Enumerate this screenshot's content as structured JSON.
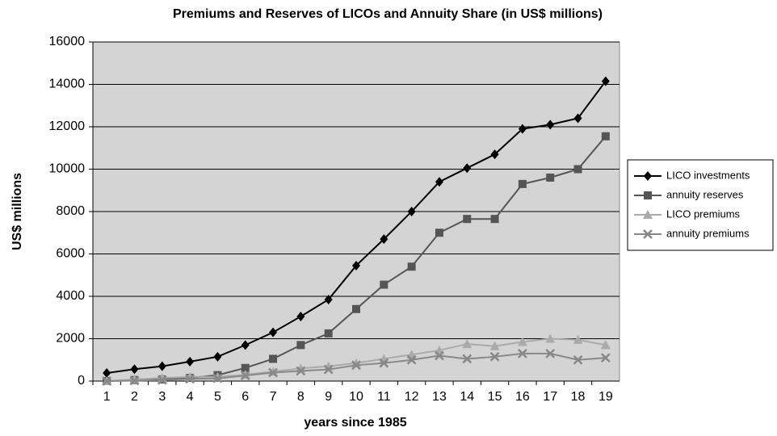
{
  "chart_data": {
    "type": "line",
    "title": "Premiums and Reserves of LICOs and Annuity Share (in US$ millions)",
    "x_label": "years since 1985",
    "y_label": "US$ millions",
    "categories": [
      "1",
      "2",
      "3",
      "4",
      "5",
      "6",
      "7",
      "8",
      "9",
      "10",
      "11",
      "12",
      "13",
      "14",
      "15",
      "16",
      "17",
      "18",
      "19"
    ],
    "series": [
      {
        "name": "LICO investments",
        "color": "#000000",
        "marker": "diamond",
        "values": [
          380,
          560,
          700,
          920,
          1150,
          1700,
          2300,
          3050,
          3850,
          5450,
          6700,
          8000,
          9400,
          10050,
          10700,
          11900,
          12100,
          12400,
          14150
        ]
      },
      {
        "name": "annuity reserves",
        "color": "#555555",
        "marker": "square",
        "values": [
          0,
          50,
          80,
          150,
          280,
          620,
          1050,
          1700,
          2250,
          3400,
          4550,
          5400,
          7000,
          7650,
          7650,
          9300,
          9600,
          10000,
          11550
        ]
      },
      {
        "name": "LICO premiums",
        "color": "#aaaaaa",
        "marker": "triangle",
        "values": [
          0,
          80,
          150,
          200,
          200,
          300,
          450,
          600,
          700,
          850,
          1050,
          1250,
          1450,
          1750,
          1650,
          1850,
          2000,
          1950,
          1700
        ]
      },
      {
        "name": "annuity premiums",
        "color": "#888888",
        "marker": "x",
        "values": [
          0,
          20,
          50,
          100,
          130,
          260,
          400,
          480,
          550,
          750,
          850,
          1000,
          1200,
          1050,
          1150,
          1300,
          1300,
          1000,
          1100
        ]
      }
    ],
    "ylim": [
      0,
      16000
    ],
    "yticks": [
      0,
      2000,
      4000,
      6000,
      8000,
      10000,
      12000,
      14000,
      16000
    ],
    "grid": true,
    "legend": "right"
  }
}
